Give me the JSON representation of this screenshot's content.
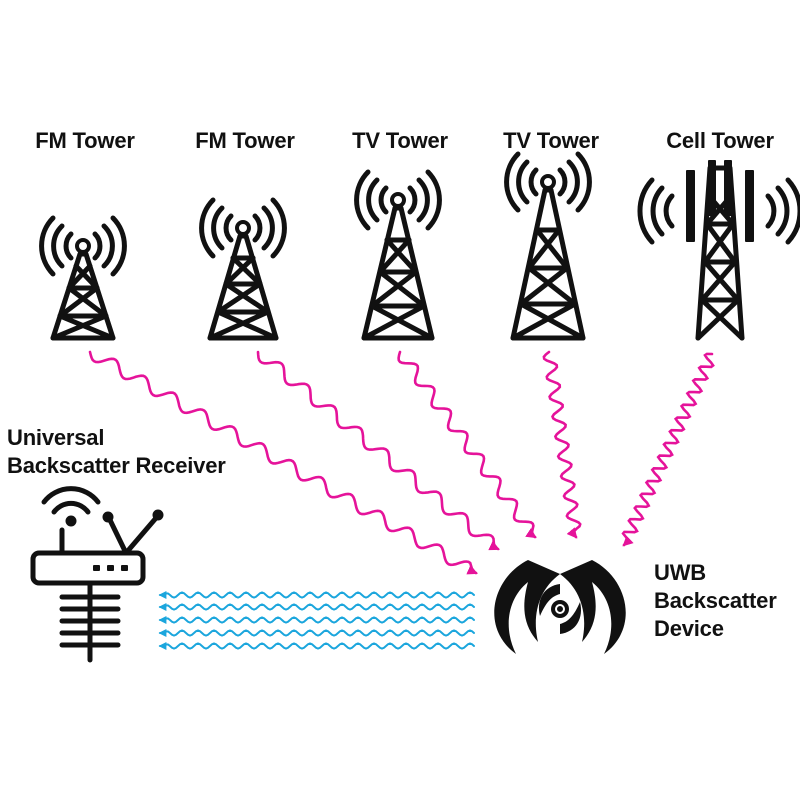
{
  "towers": [
    {
      "label": "FM Tower",
      "icon": "fm-tower-icon"
    },
    {
      "label": "FM Tower",
      "icon": "fm-tower-icon"
    },
    {
      "label": "TV Tower",
      "icon": "tv-tower-icon"
    },
    {
      "label": "TV Tower",
      "icon": "tv-tower-icon"
    },
    {
      "label": "Cell Tower",
      "icon": "cell-tower-icon"
    }
  ],
  "receiver": {
    "label_line1": "Universal",
    "label_line2": "Backscatter Receiver",
    "icon": "router-icon"
  },
  "device": {
    "label_line1": "UWB",
    "label_line2": "Backscatter",
    "label_line3": "Device",
    "icon": "uwb-device-icon"
  },
  "colors": {
    "incoming_signal": "#e5139a",
    "backscatter_signal": "#1ba6dd",
    "ink": "#111111"
  }
}
